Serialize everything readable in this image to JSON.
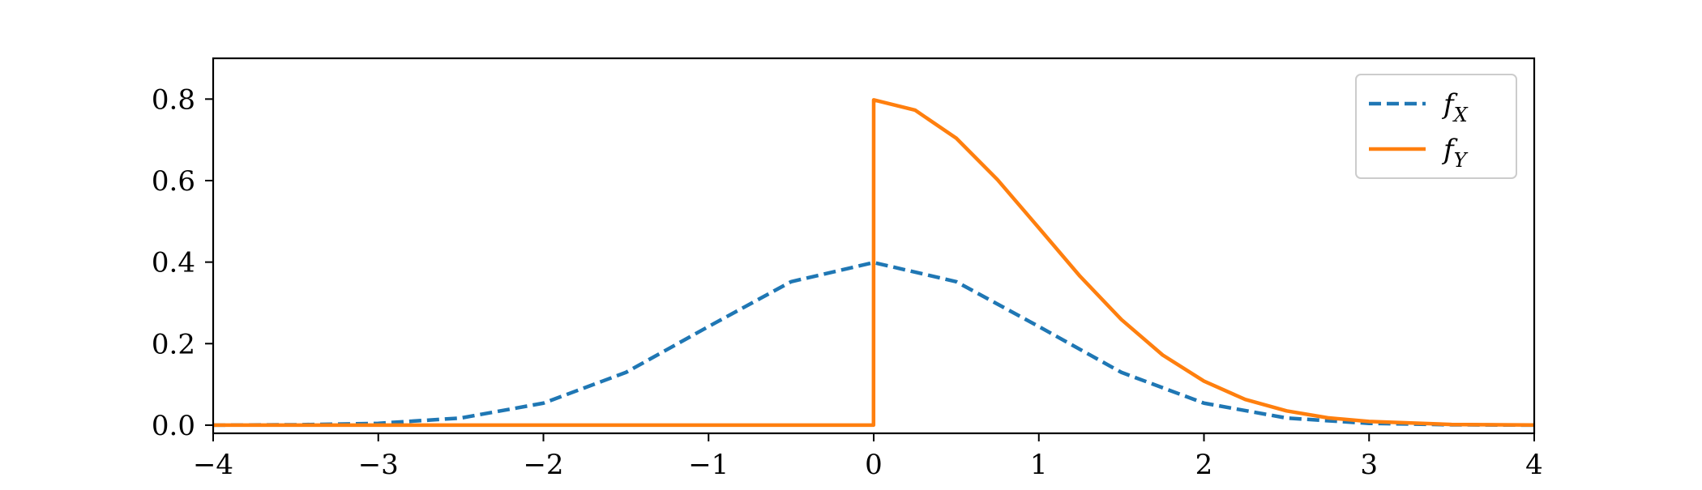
{
  "chart_data": {
    "type": "line",
    "title": "",
    "xlabel": "",
    "ylabel": "",
    "xlim": [
      -4,
      4
    ],
    "ylim": [
      -0.02,
      0.9
    ],
    "x_ticks": [
      -4,
      -3,
      -2,
      -1,
      0,
      1,
      2,
      3,
      4
    ],
    "x_tick_labels": [
      "−4",
      "−3",
      "−2",
      "−1",
      "0",
      "1",
      "2",
      "3",
      "4"
    ],
    "y_ticks": [
      0.0,
      0.2,
      0.4,
      0.6,
      0.8
    ],
    "y_tick_labels": [
      "0.0",
      "0.2",
      "0.4",
      "0.6",
      "0.8"
    ],
    "grid": false,
    "legend_position": "top-right",
    "series": [
      {
        "name": "fX",
        "name_base": "f",
        "name_sub": "X",
        "color": "#1f77b4",
        "style": "dashed",
        "x": [
          -4.0,
          -3.5,
          -3.0,
          -2.5,
          -2.0,
          -1.5,
          -1.0,
          -0.5,
          0.0,
          0.5,
          1.0,
          1.5,
          2.0,
          2.5,
          3.0,
          3.5,
          4.0
        ],
        "y": [
          0.0001,
          0.0009,
          0.0044,
          0.0175,
          0.054,
          0.1295,
          0.242,
          0.352,
          0.399,
          0.352,
          0.242,
          0.1295,
          0.054,
          0.0175,
          0.0044,
          0.0009,
          0.0001
        ]
      },
      {
        "name": "fY",
        "name_base": "f",
        "name_sub": "Y",
        "color": "#ff7f0e",
        "style": "solid",
        "x": [
          -4.0,
          -3.0,
          -2.0,
          -1.0,
          -0.001,
          0.0,
          0.25,
          0.5,
          0.75,
          1.0,
          1.25,
          1.5,
          1.75,
          2.0,
          2.25,
          2.5,
          2.75,
          3.0,
          3.5,
          4.0
        ],
        "y": [
          0.0,
          0.0,
          0.0,
          0.0,
          0.0,
          0.798,
          0.773,
          0.704,
          0.602,
          0.484,
          0.365,
          0.259,
          0.172,
          0.108,
          0.063,
          0.035,
          0.018,
          0.009,
          0.0017,
          0.0003
        ]
      }
    ]
  }
}
